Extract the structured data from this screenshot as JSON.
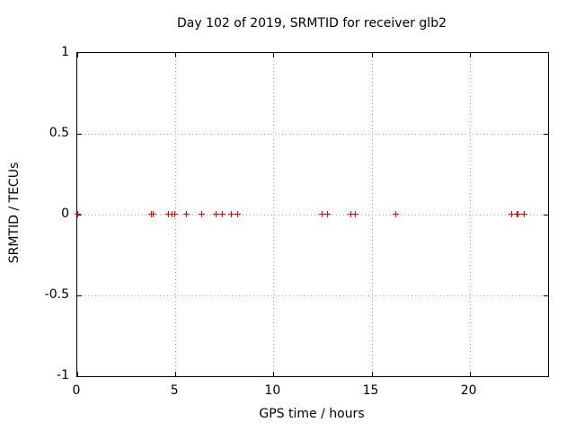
{
  "colors": {
    "background": "#ffffff",
    "border": "#000000",
    "grid": "#a0a0a0",
    "text": "#000000",
    "marker": "#ff0000"
  },
  "chart_data": {
    "type": "scatter",
    "title": "Day 102 of 2019, SRMTID for receiver glb2",
    "xlabel": "GPS time / hours",
    "ylabel": "SRMTID / TECUs",
    "xlim": [
      0,
      24
    ],
    "ylim": [
      -1,
      1
    ],
    "x_ticks": [
      0,
      5,
      10,
      15,
      20
    ],
    "x_tick_labels": [
      "0",
      "5",
      "10",
      "15",
      "20"
    ],
    "y_ticks": [
      1,
      0.5,
      0,
      -0.5,
      -1
    ],
    "y_tick_labels": [
      "1",
      "0.5",
      "0",
      "-0.5",
      "-1"
    ],
    "grid": true,
    "grid_x_lines": [
      5,
      10,
      15,
      20
    ],
    "grid_y_lines": [
      0.5,
      0,
      -0.5
    ],
    "legend": "none",
    "marker_style": "plus",
    "series": [
      {
        "name": "SRMTID",
        "points": [
          [
            0.05,
            0
          ],
          [
            3.82,
            0
          ],
          [
            3.88,
            0
          ],
          [
            4.67,
            0
          ],
          [
            4.85,
            0
          ],
          [
            5.0,
            0
          ],
          [
            5.57,
            0
          ],
          [
            6.37,
            0
          ],
          [
            7.1,
            0
          ],
          [
            7.42,
            0
          ],
          [
            7.88,
            0
          ],
          [
            8.2,
            0
          ],
          [
            12.5,
            0
          ],
          [
            12.76,
            0
          ],
          [
            13.97,
            0
          ],
          [
            14.2,
            0
          ],
          [
            16.25,
            0
          ],
          [
            22.15,
            0
          ],
          [
            22.43,
            0
          ],
          [
            22.47,
            0
          ],
          [
            22.8,
            0
          ]
        ]
      }
    ]
  }
}
